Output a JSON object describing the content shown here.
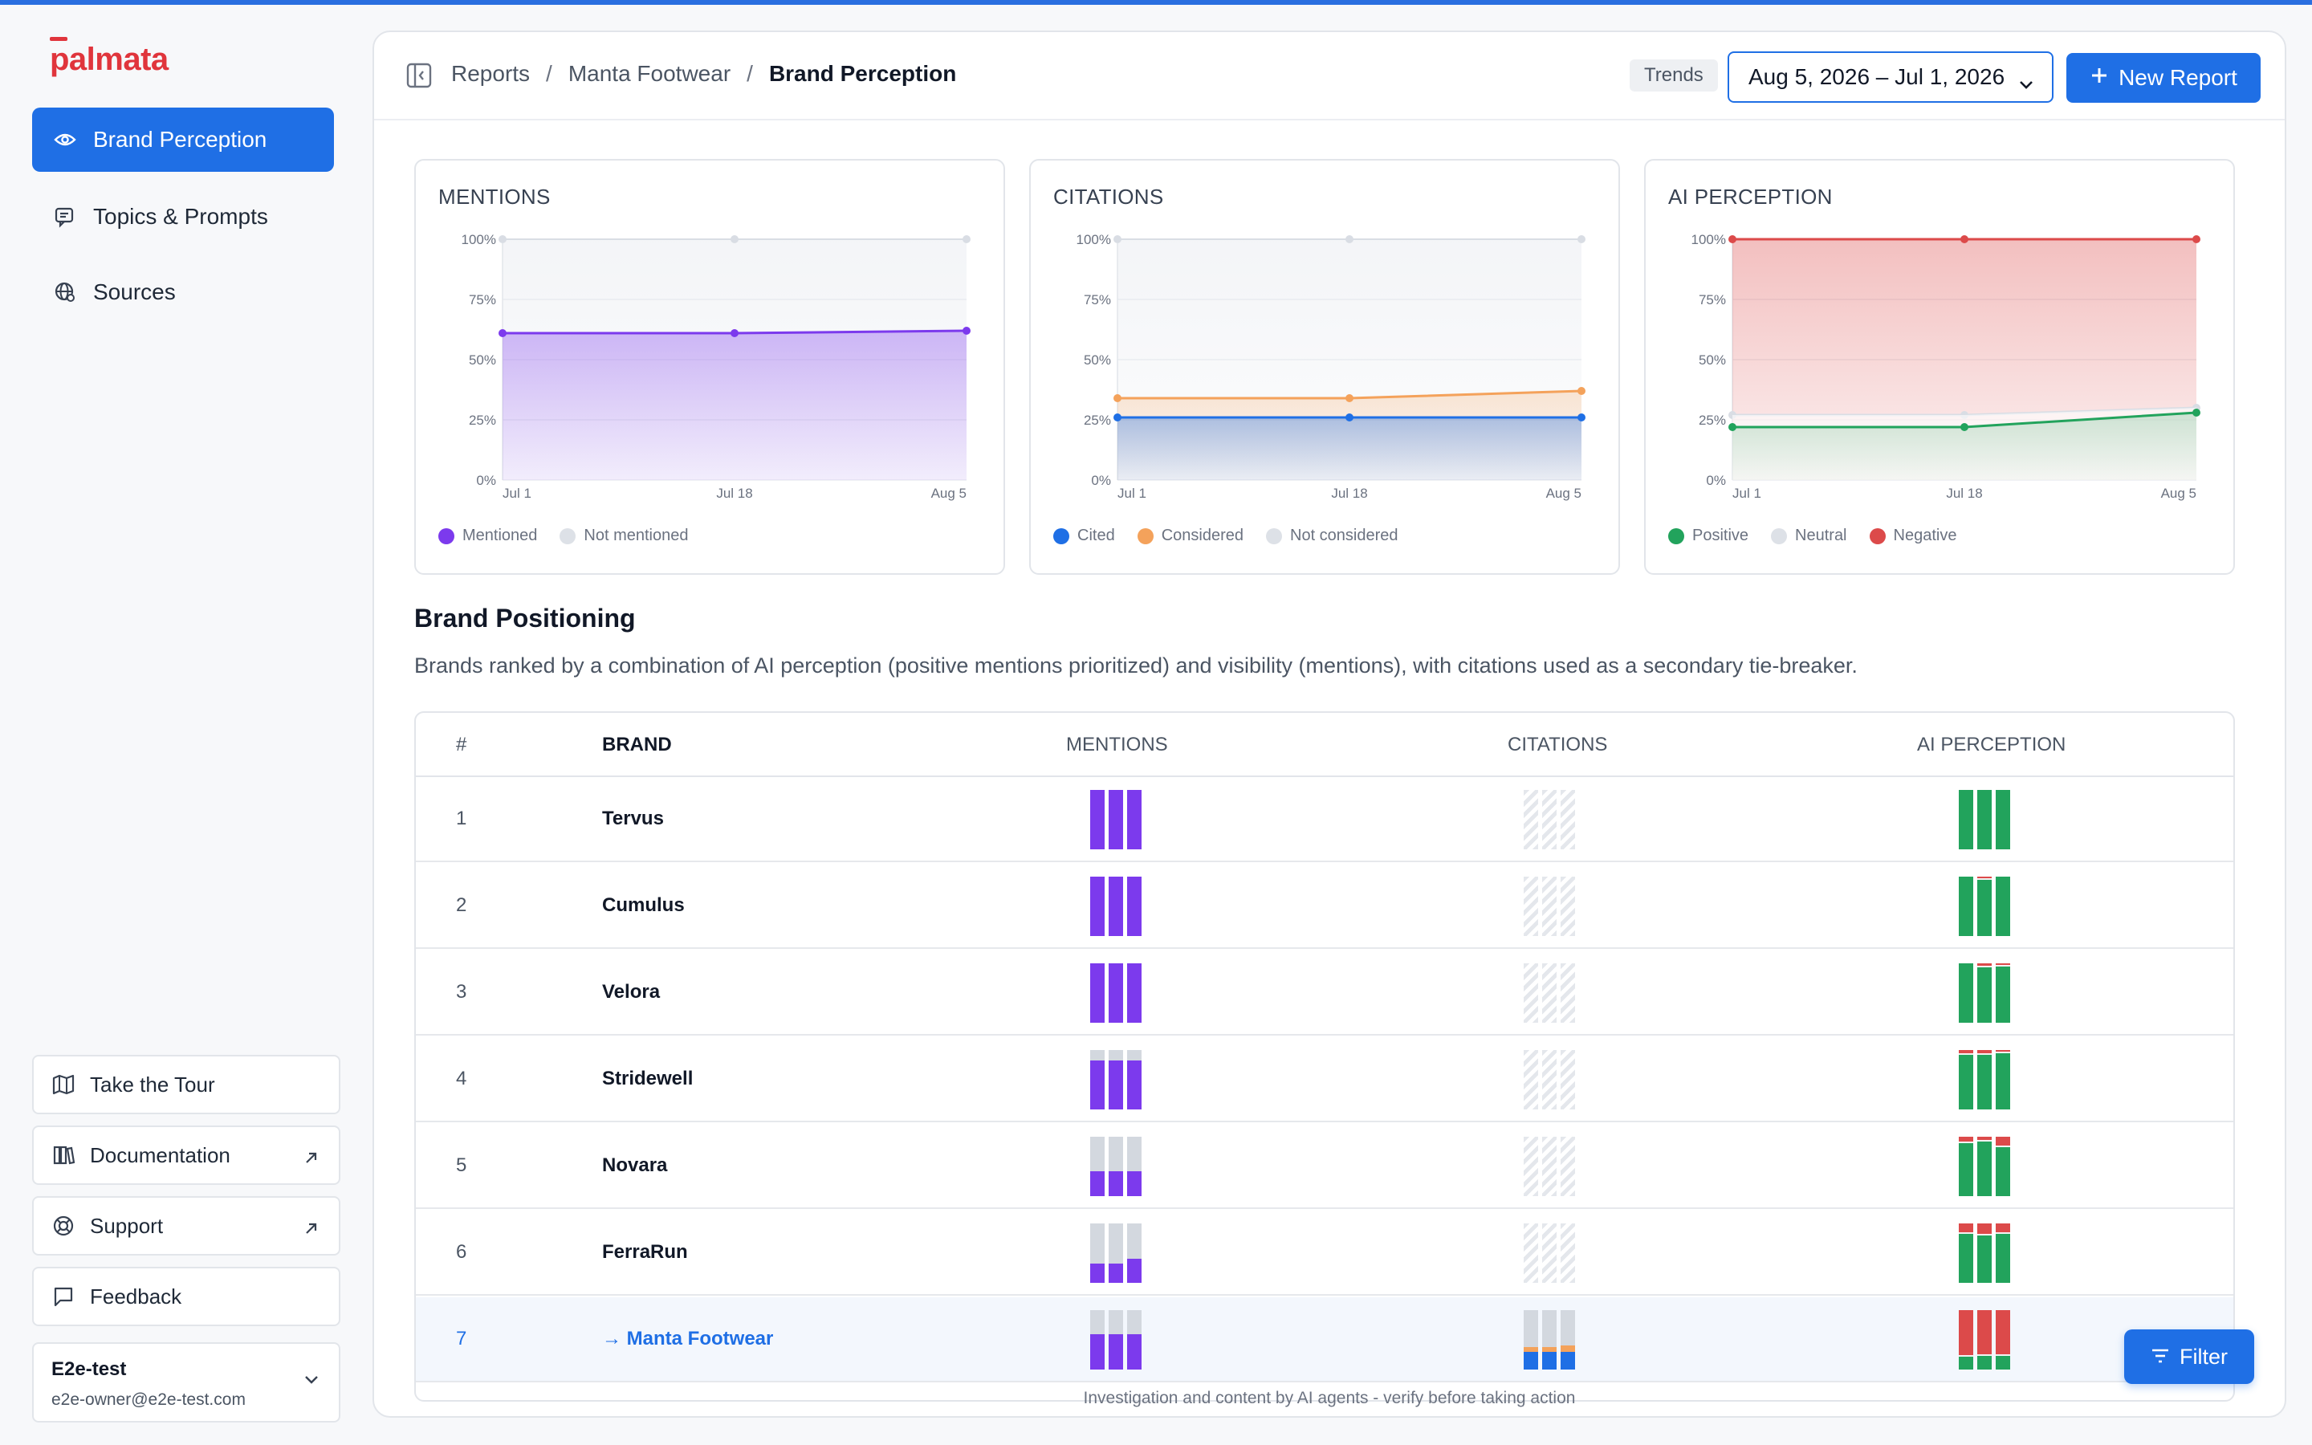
{
  "app": {
    "logo": "palmata"
  },
  "sidebar": {
    "nav": [
      {
        "label": "Brand Perception",
        "icon": "eye-icon",
        "active": true
      },
      {
        "label": "Topics & Prompts",
        "icon": "chat-icon",
        "active": false
      },
      {
        "label": "Sources",
        "icon": "globe-icon",
        "active": false
      }
    ],
    "bottom": [
      {
        "label": "Take the Tour",
        "icon": "map-icon",
        "external": false
      },
      {
        "label": "Documentation",
        "icon": "books-icon",
        "external": true
      },
      {
        "label": "Support",
        "icon": "lifebuoy-icon",
        "external": true
      },
      {
        "label": "Feedback",
        "icon": "message-icon",
        "external": false
      }
    ],
    "account": {
      "name": "E2e-test",
      "email": "e2e-owner@e2e-test.com"
    }
  },
  "header": {
    "breadcrumb": [
      "Reports",
      "Manta Footwear",
      "Brand Perception"
    ],
    "trends_label": "Trends",
    "date_range": "Aug 5, 2026 – Jul 1, 2026",
    "new_report_label": "New Report"
  },
  "chart_data": [
    {
      "type": "area",
      "title": "MENTIONS",
      "x": [
        "Jul 1",
        "Jul 18",
        "Aug 5"
      ],
      "y_ticks": [
        "100%",
        "75%",
        "50%",
        "25%",
        "0%"
      ],
      "ylim": [
        0,
        100
      ],
      "series": [
        {
          "name": "Mentioned",
          "color": "#7c3aed",
          "values": [
            61,
            61,
            62
          ]
        },
        {
          "name": "Not mentioned",
          "color": "#d9dde4",
          "values": [
            100,
            100,
            100
          ]
        }
      ]
    },
    {
      "type": "area",
      "title": "CITATIONS",
      "x": [
        "Jul 1",
        "Jul 18",
        "Aug 5"
      ],
      "y_ticks": [
        "100%",
        "75%",
        "50%",
        "25%",
        "0%"
      ],
      "ylim": [
        0,
        100
      ],
      "series": [
        {
          "name": "Cited",
          "color": "#1f6fe5",
          "values": [
            26,
            26,
            26
          ]
        },
        {
          "name": "Considered",
          "color": "#f4a25b",
          "values": [
            34,
            34,
            37
          ]
        },
        {
          "name": "Not considered",
          "color": "#d9dde4",
          "values": [
            100,
            100,
            100
          ]
        }
      ]
    },
    {
      "type": "area",
      "title": "AI PERCEPTION",
      "x": [
        "Jul 1",
        "Jul 18",
        "Aug 5"
      ],
      "y_ticks": [
        "100%",
        "75%",
        "50%",
        "25%",
        "0%"
      ],
      "ylim": [
        0,
        100
      ],
      "series": [
        {
          "name": "Positive",
          "color": "#22a35c",
          "values": [
            22,
            22,
            28
          ]
        },
        {
          "name": "Neutral",
          "color": "#d9dde4",
          "values": [
            27,
            27,
            30
          ]
        },
        {
          "name": "Negative",
          "color": "#dc4a4a",
          "values": [
            100,
            100,
            100
          ]
        }
      ]
    }
  ],
  "positioning": {
    "title": "Brand Positioning",
    "description": "Brands ranked by a combination of AI perception (positive mentions prioritized) and visibility (mentions), with citations used as a secondary tie-breaker.",
    "columns": [
      "#",
      "BRAND",
      "MENTIONS",
      "CITATIONS",
      "AI PERCEPTION"
    ],
    "rows": [
      {
        "rank": "1",
        "brand": "Tervus",
        "mentions": [
          1,
          1,
          1
        ],
        "citations": null,
        "perception": [
          [
            1,
            0
          ],
          [
            1,
            0
          ],
          [
            1,
            0
          ]
        ]
      },
      {
        "rank": "2",
        "brand": "Cumulus",
        "mentions": [
          1,
          1,
          1
        ],
        "citations": null,
        "perception": [
          [
            1,
            0
          ],
          [
            0.97,
            0.03
          ],
          [
            1,
            0
          ]
        ]
      },
      {
        "rank": "3",
        "brand": "Velora",
        "mentions": [
          1,
          1,
          1
        ],
        "citations": null,
        "perception": [
          [
            1,
            0
          ],
          [
            0.96,
            0.04
          ],
          [
            0.97,
            0.03
          ]
        ]
      },
      {
        "rank": "4",
        "brand": "Stridewell",
        "mentions": [
          0.82,
          0.82,
          0.82
        ],
        "citations": null,
        "perception": [
          [
            0.95,
            0.05
          ],
          [
            0.95,
            0.05
          ],
          [
            0.97,
            0.03
          ]
        ]
      },
      {
        "rank": "5",
        "brand": "Novara",
        "mentions": [
          0.42,
          0.42,
          0.42
        ],
        "citations": null,
        "perception": [
          [
            0.92,
            0.08
          ],
          [
            0.94,
            0.06
          ],
          [
            0.85,
            0.15
          ]
        ]
      },
      {
        "rank": "6",
        "brand": "FerraRun",
        "mentions": [
          0.32,
          0.32,
          0.4
        ],
        "citations": null,
        "perception": [
          [
            0.85,
            0.15
          ],
          [
            0.82,
            0.18
          ],
          [
            0.85,
            0.15
          ]
        ]
      },
      {
        "rank": "7",
        "brand": "Manta Footwear",
        "highlight": true,
        "mentions": [
          0.6,
          0.6,
          0.6
        ],
        "citations": [
          [
            0.3,
            0.08
          ],
          [
            0.3,
            0.08
          ],
          [
            0.3,
            0.1
          ]
        ],
        "perception": [
          [
            0.24,
            0.76
          ],
          [
            0.26,
            0.74
          ],
          [
            0.26,
            0.74
          ]
        ]
      }
    ]
  },
  "footer_note": "Investigation and content by AI agents - verify before taking action",
  "filter_label": "Filter",
  "colors": {
    "accent": "#1f6fe5",
    "purple": "#7c3aed",
    "green": "#22a35c",
    "red": "#dc4a4a",
    "orange": "#f4a25b",
    "grey": "#d3d8df"
  }
}
